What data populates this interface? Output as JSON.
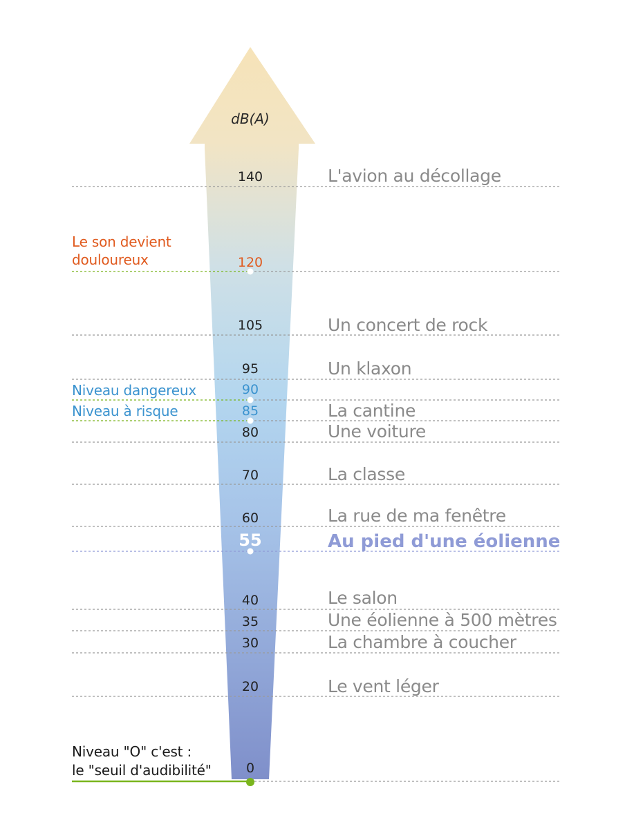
{
  "unit_label": "dB(A)",
  "levels": [
    {
      "value": "140",
      "label": "L'avion au décollage"
    },
    {
      "value": "120",
      "label": ""
    },
    {
      "value": "105",
      "label": "Un concert de rock"
    },
    {
      "value": "95",
      "label": "Un klaxon"
    },
    {
      "value": "90",
      "label": ""
    },
    {
      "value": "85",
      "label": "La cantine"
    },
    {
      "value": "80",
      "label": "Une voiture"
    },
    {
      "value": "70",
      "label": "La classe"
    },
    {
      "value": "60",
      "label": "La rue de ma fenêtre"
    },
    {
      "value": "55",
      "label": "Au pied d'une éolienne"
    },
    {
      "value": "40",
      "label": "Le salon"
    },
    {
      "value": "35",
      "label": "Une éolienne à 500 mètres"
    },
    {
      "value": "30",
      "label": "La chambre à coucher"
    },
    {
      "value": "20",
      "label": "Le vent léger"
    },
    {
      "value": "0",
      "label": ""
    }
  ],
  "annotations": {
    "painful": [
      "Le son devient",
      "douloureux"
    ],
    "dangerous": "Niveau dangereux",
    "risk": "Niveau à risque",
    "threshold": [
      "Niveau \"O\" c'est :",
      "le \"seuil d'audibilité\""
    ]
  },
  "colors": {
    "arrow_top": "#f6e3b8",
    "arrow_mid": "#b7d7ee",
    "arrow_bottom": "#7f8fca",
    "painful": "#e05a1e",
    "risk": "#3b93cf",
    "threshold_line": "#7ab51d",
    "highlight": "#8f9bd6",
    "dotted_line": "#9a9a9a"
  }
}
